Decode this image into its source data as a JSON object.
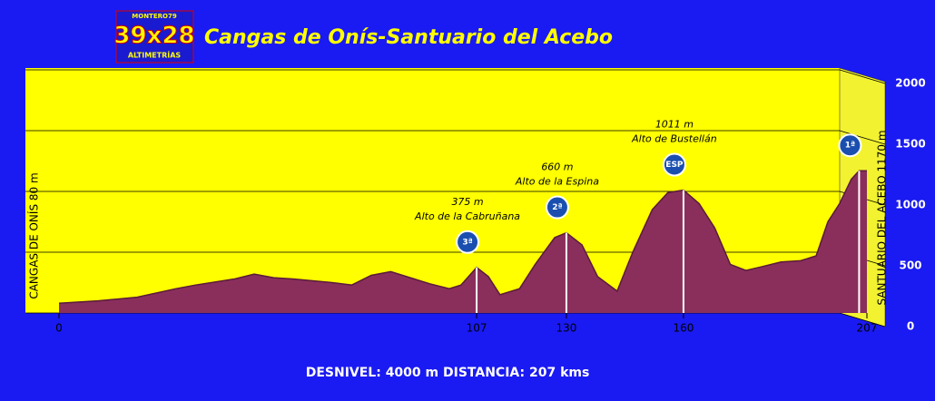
{
  "logo": {
    "top": "MONTERO79",
    "main": "39x28",
    "bottom": "ALTIMETRÍAS"
  },
  "chart_data": {
    "type": "area",
    "title": "Cangas de Onís-Santuario del Acebo",
    "start_label": "CANGAS DE ONÍS  80 m",
    "end_label": "SANTUARIO DEL ACEBO 1170 m",
    "x": [
      0,
      10,
      20,
      30,
      35,
      45,
      50,
      55,
      60,
      70,
      75,
      80,
      85,
      90,
      95,
      100,
      103,
      107,
      110,
      113,
      118,
      122,
      127,
      130,
      134,
      138,
      143,
      147,
      152,
      156,
      160,
      164,
      168,
      172,
      176,
      180,
      185,
      190,
      194,
      197,
      200,
      203,
      205,
      207
    ],
    "values": [
      80,
      100,
      130,
      200,
      230,
      280,
      320,
      290,
      280,
      250,
      230,
      310,
      340,
      290,
      240,
      200,
      230,
      375,
      300,
      150,
      200,
      400,
      620,
      660,
      560,
      300,
      180,
      500,
      850,
      990,
      1011,
      900,
      700,
      400,
      350,
      380,
      420,
      430,
      470,
      750,
      900,
      1100,
      1170,
      1170
    ],
    "color": "#8a2f5c",
    "xlim": [
      0,
      207
    ],
    "xticks": [
      0,
      107,
      130,
      160,
      207
    ],
    "ylim": [
      0,
      2000
    ],
    "yticks": [
      0,
      500,
      1000,
      1500,
      2000
    ],
    "grid": true,
    "climbs": [
      {
        "x": 107,
        "value": 375,
        "value_label": "375 m",
        "name": "Alto de la Cabruñana",
        "category": "3ª"
      },
      {
        "x": 130,
        "value": 660,
        "value_label": "660 m",
        "name": "Alto de la Espina",
        "category": "2ª"
      },
      {
        "x": 160,
        "value": 1011,
        "value_label": "1011 m",
        "name": "Alto de Bustellán",
        "category": "ESP"
      },
      {
        "x": 205,
        "value": 1170,
        "value_label": "1170 m",
        "category": "1ª"
      }
    ]
  },
  "footer": "DESNIVEL:  4000 m   DISTANCIA: 207 kms"
}
